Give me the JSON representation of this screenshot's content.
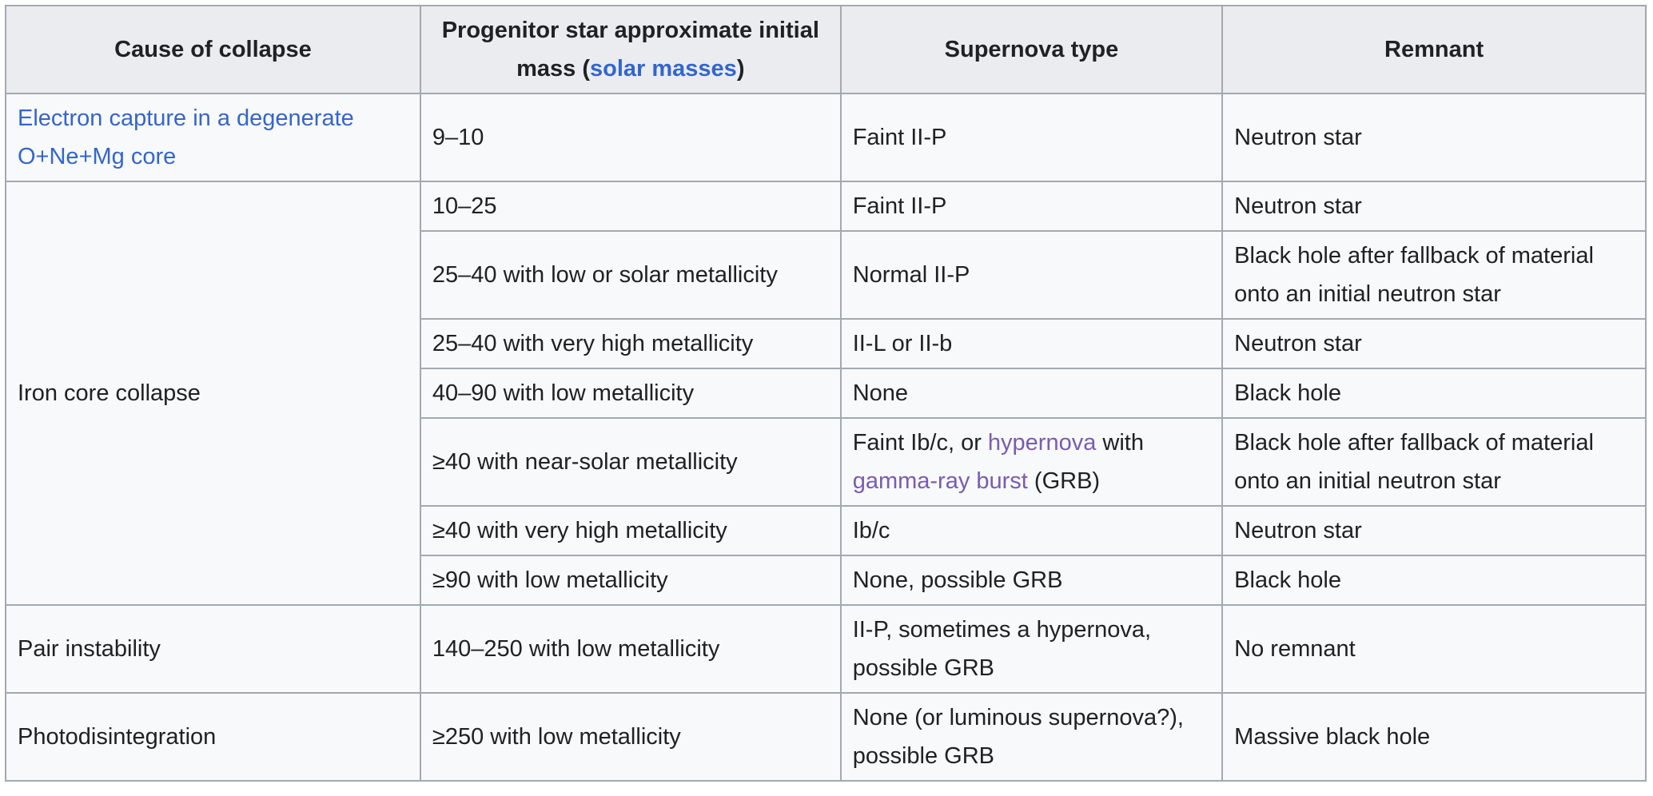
{
  "headers": {
    "cause": "Cause of collapse",
    "mass_prefix": "Progenitor star approximate initial mass (",
    "mass_link": "solar masses",
    "mass_suffix": ")",
    "type": "Supernova type",
    "remnant": "Remnant"
  },
  "rows": [
    {
      "cause": "Electron capture in a degenerate O+Ne+Mg core",
      "mass": "9–10",
      "type": "Faint II-P",
      "remnant": "Neutron star"
    },
    {
      "cause": "Iron core collapse",
      "mass": "10–25",
      "type": "Faint II-P",
      "remnant": "Neutron star"
    },
    {
      "mass": "25–40 with low or solar metallicity",
      "type": "Normal II-P",
      "remnant": "Black hole after fallback of material onto an initial neutron star"
    },
    {
      "mass": "25–40 with very high metallicity",
      "type": "II-L or II-b",
      "remnant": "Neutron star"
    },
    {
      "mass": "40–90 with low metallicity",
      "type": "None",
      "remnant": "Black hole"
    },
    {
      "mass": "≥40 with near-solar metallicity",
      "type_a": "Faint Ib/c, or ",
      "type_link1": "hypernova",
      "type_b": " with ",
      "type_link2": "gamma-ray burst",
      "type_c": " (GRB)",
      "remnant": "Black hole after fallback of material onto an initial neutron star"
    },
    {
      "mass": "≥40 with very high metallicity",
      "type": "Ib/c",
      "remnant": "Neutron star"
    },
    {
      "mass": "≥90 with low metallicity",
      "type": "None, possible GRB",
      "remnant": "Black hole"
    },
    {
      "cause": "Pair instability",
      "mass": "140–250 with low metallicity",
      "type": "II-P, sometimes a hypernova, possible GRB",
      "remnant": "No remnant"
    },
    {
      "cause": "Photodisintegration",
      "mass": "≥250 with low metallicity",
      "type": "None (or luminous supernova?), possible GRB",
      "remnant": "Massive black hole"
    }
  ]
}
